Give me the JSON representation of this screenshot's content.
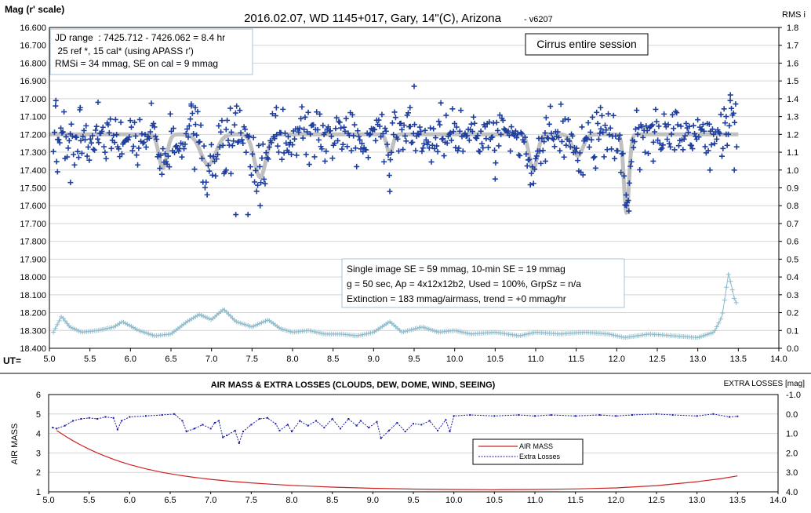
{
  "chart_data": [
    {
      "type": "scatter",
      "title": "2016.02.07,  WD 1145+017,  Gary,  14\"(C), Arizona",
      "title_suffix": "- v6207",
      "ylabel": "Mag (r' scale)",
      "y2label": "RMS i",
      "xlabel": "UT=",
      "xlim": [
        5.0,
        14.0
      ],
      "ylim": [
        16.6,
        18.4
      ],
      "y_inverted": true,
      "y2lim": [
        0.0,
        1.8
      ],
      "x_ticks": [
        "5.0",
        "5.5",
        "6.0",
        "6.5",
        "7.0",
        "7.5",
        "8.0",
        "8.5",
        "9.0",
        "9.5",
        "10.0",
        "10.5",
        "11.0",
        "11.5",
        "12.0",
        "12.5",
        "13.0",
        "13.5",
        "14.0"
      ],
      "y_ticks": [
        "16.600",
        "16.700",
        "16.800",
        "16.900",
        "17.000",
        "17.100",
        "17.200",
        "17.300",
        "17.400",
        "17.500",
        "17.600",
        "17.700",
        "17.800",
        "17.900",
        "18.000",
        "18.100",
        "18.200",
        "18.300",
        "18.400"
      ],
      "y2_ticks": [
        "1.8",
        "1.7",
        "1.6",
        "1.5",
        "1.4",
        "1.3",
        "1.2",
        "1.1",
        "1.0",
        "0.9",
        "0.8",
        "0.7",
        "0.6",
        "0.5",
        "0.4",
        "0.3",
        "0.2",
        "0.1",
        "0.0"
      ],
      "grid": true,
      "legend": "none",
      "colors": {
        "points": "#1f3f9f",
        "model": "#c0c0c0",
        "rms": "#8fbccc"
      },
      "baseline_mag": 17.2,
      "dips": [
        {
          "ut": 6.4,
          "depth_mag": 0.19,
          "width_hr": 0.07
        },
        {
          "ut": 6.96,
          "depth_mag": 0.17,
          "width_hr": 0.13
        },
        {
          "ut": 7.6,
          "depth_mag": 0.24,
          "width_hr": 0.1
        },
        {
          "ut": 9.2,
          "depth_mag": 0.11,
          "width_hr": 0.05
        },
        {
          "ut": 10.97,
          "depth_mag": 0.2,
          "width_hr": 0.07
        },
        {
          "ut": 11.52,
          "depth_mag": 0.12,
          "width_hr": 0.09
        },
        {
          "ut": 12.12,
          "depth_mag": 0.44,
          "width_hr": 0.045
        }
      ],
      "scatter_rms_mag": 0.055,
      "rms_series": [
        [
          5.05,
          0.09
        ],
        [
          5.15,
          0.18
        ],
        [
          5.25,
          0.12
        ],
        [
          5.4,
          0.09
        ],
        [
          5.6,
          0.1
        ],
        [
          5.8,
          0.12
        ],
        [
          5.9,
          0.15
        ],
        [
          6.1,
          0.1
        ],
        [
          6.3,
          0.07
        ],
        [
          6.5,
          0.08
        ],
        [
          6.7,
          0.15
        ],
        [
          6.85,
          0.19
        ],
        [
          7.0,
          0.16
        ],
        [
          7.15,
          0.22
        ],
        [
          7.3,
          0.15
        ],
        [
          7.5,
          0.12
        ],
        [
          7.7,
          0.16
        ],
        [
          7.85,
          0.11
        ],
        [
          8.0,
          0.09
        ],
        [
          8.2,
          0.1
        ],
        [
          8.4,
          0.08
        ],
        [
          8.6,
          0.08
        ],
        [
          8.8,
          0.07
        ],
        [
          9.0,
          0.09
        ],
        [
          9.2,
          0.15
        ],
        [
          9.35,
          0.09
        ],
        [
          9.6,
          0.12
        ],
        [
          9.8,
          0.09
        ],
        [
          10.0,
          0.1
        ],
        [
          10.2,
          0.08
        ],
        [
          10.5,
          0.09
        ],
        [
          10.8,
          0.07
        ],
        [
          11.0,
          0.09
        ],
        [
          11.3,
          0.08
        ],
        [
          11.6,
          0.09
        ],
        [
          11.9,
          0.08
        ],
        [
          12.1,
          0.06
        ],
        [
          12.4,
          0.08
        ],
        [
          12.7,
          0.07
        ],
        [
          13.0,
          0.06
        ],
        [
          13.2,
          0.09
        ],
        [
          13.3,
          0.18
        ],
        [
          13.38,
          0.42
        ],
        [
          13.45,
          0.28
        ],
        [
          13.48,
          0.25
        ]
      ],
      "seed": 20160207,
      "n_points": 650,
      "outlier_points": [
        [
          5.08,
          17.01
        ],
        [
          5.1,
          17.41
        ],
        [
          5.26,
          17.47
        ],
        [
          5.38,
          17.05
        ],
        [
          5.6,
          17.02
        ],
        [
          6.75,
          17.03
        ],
        [
          6.8,
          17.05
        ],
        [
          7.18,
          17.4
        ],
        [
          7.24,
          17.42
        ],
        [
          7.3,
          17.65
        ],
        [
          7.45,
          17.65
        ],
        [
          7.6,
          17.6
        ],
        [
          7.8,
          17.05
        ],
        [
          7.95,
          17.3
        ],
        [
          8.4,
          17.35
        ],
        [
          9.2,
          17.52
        ],
        [
          9.45,
          17.05
        ],
        [
          9.5,
          16.93
        ],
        [
          10.5,
          17.45
        ],
        [
          11.12,
          17.35
        ],
        [
          11.8,
          17.05
        ],
        [
          12.15,
          17.63
        ],
        [
          12.12,
          17.6
        ],
        [
          12.45,
          17.35
        ],
        [
          13.15,
          17.4
        ],
        [
          13.4,
          17.01
        ],
        [
          13.45,
          17.4
        ],
        [
          13.35,
          17.1
        ]
      ],
      "annotations": {
        "info_box": [
          "JD range  : 7425.712 - 7426.062 = 8.4 hr",
          " 25 ref *, 15 cal* (using APASS r')",
          "RMSi = 34 mmag, SE on cal = 9 mmag"
        ],
        "note_box": "Cirrus entire session",
        "stats_box": [
          "Single image SE = 59 mmag, 10-min SE = 19 mmag",
          "g = 50 sec, Ap = 4x12x12b2, Used = 100%, GrpSz = n/a",
          "Extinction = 183 mmag/airmass, trend = +0 mmag/hr"
        ]
      }
    },
    {
      "type": "line",
      "title": "AIR MASS & EXTRA LOSSES (CLOUDS, DEW, DOME, WIND, SEEING)",
      "ylabel": "AIR MASS",
      "y2label": "EXTRA LOSSES [mag]",
      "xlim": [
        5.0,
        14.0
      ],
      "ylim": [
        1,
        6
      ],
      "y2lim": [
        4.0,
        -1.0
      ],
      "x_ticks": [
        "5.0",
        "5.5",
        "6.0",
        "6.5",
        "7.0",
        "7.5",
        "8.0",
        "8.5",
        "9.0",
        "9.5",
        "10.0",
        "10.5",
        "11.0",
        "11.5",
        "12.0",
        "12.5",
        "13.0",
        "13.5",
        "14.0"
      ],
      "y_ticks": [
        "1",
        "2",
        "3",
        "4",
        "5",
        "6"
      ],
      "y2_ticks": [
        "4.0",
        "3.0",
        "2.0",
        "1.0",
        "0.0",
        "-1.0"
      ],
      "grid": true,
      "legend": "center-right",
      "series": [
        {
          "name": "AIR MASS",
          "color": "#cc2222",
          "points": [
            [
              5.1,
              4.15
            ],
            [
              5.2,
              3.88
            ],
            [
              5.3,
              3.63
            ],
            [
              5.4,
              3.4
            ],
            [
              5.5,
              3.19
            ],
            [
              5.6,
              3.0
            ],
            [
              5.7,
              2.83
            ],
            [
              5.8,
              2.67
            ],
            [
              5.9,
              2.53
            ],
            [
              6.0,
              2.4
            ],
            [
              6.2,
              2.18
            ],
            [
              6.4,
              2.0
            ],
            [
              6.6,
              1.86
            ],
            [
              6.8,
              1.74
            ],
            [
              7.0,
              1.64
            ],
            [
              7.25,
              1.54
            ],
            [
              7.5,
              1.46
            ],
            [
              7.75,
              1.39
            ],
            [
              8.0,
              1.33
            ],
            [
              8.5,
              1.24
            ],
            [
              9.0,
              1.18
            ],
            [
              9.5,
              1.14
            ],
            [
              10.0,
              1.12
            ],
            [
              10.5,
              1.11
            ],
            [
              11.0,
              1.12
            ],
            [
              11.5,
              1.15
            ],
            [
              12.0,
              1.2
            ],
            [
              12.5,
              1.32
            ],
            [
              13.0,
              1.52
            ],
            [
              13.3,
              1.68
            ],
            [
              13.5,
              1.82
            ]
          ]
        },
        {
          "name": "Extra Losses",
          "color": "#1a1aaa",
          "points": [
            [
              5.05,
              0.7
            ],
            [
              5.1,
              0.75
            ],
            [
              5.2,
              0.6
            ],
            [
              5.3,
              0.35
            ],
            [
              5.4,
              0.25
            ],
            [
              5.5,
              0.2
            ],
            [
              5.6,
              0.25
            ],
            [
              5.7,
              0.15
            ],
            [
              5.8,
              0.2
            ],
            [
              5.85,
              0.8
            ],
            [
              5.9,
              0.35
            ],
            [
              6.0,
              0.15
            ],
            [
              6.2,
              0.1
            ],
            [
              6.4,
              0.05
            ],
            [
              6.55,
              0.0
            ],
            [
              6.65,
              0.35
            ],
            [
              6.7,
              0.9
            ],
            [
              6.8,
              0.75
            ],
            [
              6.9,
              0.55
            ],
            [
              7.0,
              0.75
            ],
            [
              7.05,
              0.45
            ],
            [
              7.1,
              0.35
            ],
            [
              7.15,
              1.2
            ],
            [
              7.2,
              1.1
            ],
            [
              7.3,
              0.85
            ],
            [
              7.35,
              1.5
            ],
            [
              7.4,
              0.9
            ],
            [
              7.5,
              0.55
            ],
            [
              7.6,
              0.25
            ],
            [
              7.7,
              0.2
            ],
            [
              7.8,
              0.5
            ],
            [
              7.85,
              0.85
            ],
            [
              7.95,
              0.55
            ],
            [
              8.0,
              0.9
            ],
            [
              8.1,
              0.35
            ],
            [
              8.2,
              0.6
            ],
            [
              8.3,
              0.35
            ],
            [
              8.4,
              0.7
            ],
            [
              8.5,
              0.25
            ],
            [
              8.6,
              0.75
            ],
            [
              8.7,
              0.25
            ],
            [
              8.8,
              0.6
            ],
            [
              8.85,
              0.35
            ],
            [
              8.95,
              0.7
            ],
            [
              9.05,
              0.4
            ],
            [
              9.1,
              1.25
            ],
            [
              9.2,
              0.85
            ],
            [
              9.3,
              0.45
            ],
            [
              9.4,
              0.9
            ],
            [
              9.5,
              0.5
            ],
            [
              9.6,
              0.55
            ],
            [
              9.7,
              0.35
            ],
            [
              9.8,
              0.85
            ],
            [
              9.9,
              0.3
            ],
            [
              9.95,
              0.9
            ],
            [
              10.0,
              0.1
            ],
            [
              10.2,
              0.05
            ],
            [
              10.5,
              0.1
            ],
            [
              10.8,
              0.05
            ],
            [
              11.0,
              0.1
            ],
            [
              11.2,
              0.05
            ],
            [
              11.5,
              0.1
            ],
            [
              11.8,
              0.05
            ],
            [
              12.0,
              0.1
            ],
            [
              12.2,
              0.05
            ],
            [
              12.5,
              0.0
            ],
            [
              12.7,
              0.05
            ],
            [
              13.0,
              0.1
            ],
            [
              13.2,
              0.0
            ],
            [
              13.4,
              0.15
            ],
            [
              13.5,
              0.12
            ]
          ]
        }
      ]
    }
  ]
}
